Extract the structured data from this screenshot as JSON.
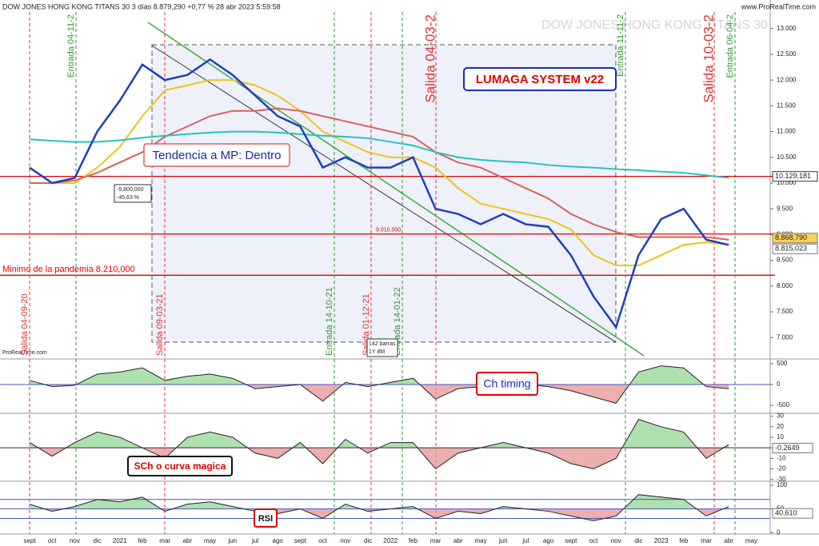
{
  "header": {
    "title": "DOW JONES HONG KONG TITANS 30 3 días 8.879,290 +0,77 % 28 abr 2023 5:59:58",
    "site": "www.ProRealTime.com",
    "watermark": "DOW JONES HONG KONG TITANS 30",
    "logo": "ProRealTime.com",
    "system_label": "LUMAGA SYSTEM v22",
    "trend_label": "Tendencia a MP: Dentro",
    "measure": [
      "-5,800,000",
      "-45,63 %"
    ],
    "bars": [
      "142 barras",
      "1Y 8M"
    ]
  },
  "chart_data": [
    {
      "type": "line",
      "categories": [
        "sept",
        "oct",
        "nov",
        "dic",
        "2021",
        "feb",
        "mar",
        "abr",
        "may",
        "jun",
        "jul",
        "ago",
        "sept",
        "oct",
        "nov",
        "dic",
        "2022",
        "feb",
        "mar",
        "abr",
        "may",
        "jun",
        "jul",
        "ago",
        "sept",
        "oct",
        "nov",
        "dic",
        "2023",
        "feb",
        "mar",
        "abr",
        "may"
      ],
      "series": [
        {
          "color": "#1f3fbf",
          "values": [
            10.3,
            10.0,
            10.1,
            11.0,
            11.6,
            12.3,
            12.0,
            12.1,
            12.4,
            12.1,
            11.7,
            11.3,
            11.1,
            10.3,
            10.5,
            10.3,
            10.3,
            10.5,
            9.5,
            9.4,
            9.2,
            9.4,
            9.2,
            9.15,
            8.6,
            7.8,
            7.2,
            8.6,
            9.3,
            9.5,
            8.9,
            8.8,
            null
          ]
        },
        {
          "color": "#f2c21b",
          "values": [
            10.0,
            10.0,
            10.0,
            10.3,
            10.7,
            11.3,
            11.8,
            11.9,
            12.0,
            12.0,
            11.9,
            11.7,
            11.4,
            11.0,
            10.8,
            10.6,
            10.5,
            10.5,
            10.3,
            9.9,
            9.6,
            9.5,
            9.4,
            9.3,
            9.1,
            8.6,
            8.4,
            8.4,
            8.6,
            8.8,
            8.85,
            8.8,
            null
          ]
        },
        {
          "color": "#d9625e",
          "values": [
            10.0,
            10.0,
            10.05,
            10.2,
            10.4,
            10.6,
            10.9,
            11.1,
            11.3,
            11.4,
            11.4,
            11.45,
            11.4,
            11.3,
            11.2,
            11.1,
            11.0,
            10.9,
            10.6,
            10.4,
            10.3,
            10.1,
            9.9,
            9.7,
            9.4,
            9.2,
            9.05,
            8.95,
            8.95,
            8.95,
            8.95,
            8.9,
            null
          ]
        },
        {
          "color": "#26c2c2",
          "values": [
            10.85,
            10.82,
            10.8,
            10.8,
            10.83,
            10.88,
            10.92,
            10.95,
            10.98,
            11.0,
            11.0,
            10.98,
            10.95,
            10.92,
            10.9,
            10.87,
            10.8,
            10.73,
            10.6,
            10.5,
            10.45,
            10.42,
            10.4,
            10.35,
            10.32,
            10.3,
            10.27,
            10.25,
            10.22,
            10.2,
            10.15,
            10.1,
            null
          ]
        }
      ],
      "ylim": [
        6.6,
        13.12
      ],
      "yticks": [
        {
          "value": 7,
          "label": "7.000"
        },
        {
          "value": 7.5,
          "label": "7.500"
        },
        {
          "value": 8,
          "label": "8.000"
        },
        {
          "value": 8.5,
          "label": "8.500"
        },
        {
          "value": 9,
          "label": "9.000"
        },
        {
          "value": 9.5,
          "label": "9.500"
        },
        {
          "value": 10,
          "label": "10.000"
        },
        {
          "value": 10.5,
          "label": "10.500"
        },
        {
          "value": 11,
          "label": "11.000"
        },
        {
          "value": 11.5,
          "label": "11.500"
        },
        {
          "value": 12,
          "label": "12.000"
        },
        {
          "value": 12.5,
          "label": "12.500"
        },
        {
          "value": 13,
          "label": "13.000"
        }
      ],
      "hlines": [
        {
          "value": 10.129181,
          "label": "10.129,181"
        },
        {
          "value": 9.01,
          "label": "9.010,000"
        },
        {
          "value": 8.21,
          "label": "Minimo de la pandemia 8.210,000"
        }
      ],
      "last_values": [
        {
          "value": 8.86879,
          "label": "8.868,790"
        },
        {
          "value": 8.815023,
          "label": "8.815,023"
        }
      ],
      "events": [
        {
          "label": "Salida 04-09-20",
          "color": "#e03030"
        },
        {
          "label": "Entrada 04-11-2",
          "color": "#2e9a2e"
        },
        {
          "label": "Salida 09-03-21",
          "color": "#e03030"
        },
        {
          "label": "Entrada 14-10-21",
          "color": "#2e9a2e"
        },
        {
          "label": "Salida 01-12-21",
          "color": "#e03030"
        },
        {
          "label": "Entrada 14-01-22",
          "color": "#2e9a2e"
        },
        {
          "label": "Salida 04-03-2",
          "color": "#e03030"
        },
        {
          "label": "Entrada 11-11-2",
          "color": "#2e9a2e"
        },
        {
          "label": "Salida 10-03-2",
          "color": "#e03030"
        },
        {
          "label": "Entrada 06-04-2",
          "color": "#2e9a2e"
        }
      ]
    },
    {
      "type": "area",
      "title": "Ch timing",
      "values": [
        100,
        -50,
        -20,
        250,
        300,
        400,
        100,
        200,
        250,
        150,
        -100,
        -50,
        0,
        -400,
        50,
        -50,
        50,
        150,
        -350,
        -100,
        -50,
        100,
        0,
        -50,
        -150,
        -300,
        -450,
        300,
        450,
        400,
        -50,
        -100,
        null
      ],
      "ylim": [
        -673,
        596
      ],
      "yticks": [
        500,
        0,
        -500
      ]
    },
    {
      "type": "area",
      "title": "SCh o curva magica",
      "values": [
        5,
        -8,
        5,
        15,
        10,
        0,
        -10,
        10,
        15,
        10,
        -5,
        -10,
        5,
        -15,
        8,
        -5,
        5,
        5,
        -20,
        -5,
        0,
        5,
        0,
        -5,
        -15,
        -20,
        -10,
        27,
        20,
        15,
        -10,
        3,
        null
      ],
      "ylim": [
        -31,
        32
      ],
      "yticks": [
        30,
        20,
        10,
        0,
        -10,
        -20,
        -30
      ],
      "last_value": {
        "value": -0.2649,
        "label": "-0,2649"
      }
    },
    {
      "type": "area",
      "title": "RSI",
      "values": [
        60,
        45,
        55,
        70,
        65,
        75,
        45,
        60,
        65,
        55,
        45,
        40,
        50,
        30,
        60,
        45,
        50,
        55,
        30,
        45,
        40,
        55,
        50,
        45,
        35,
        25,
        35,
        80,
        75,
        70,
        35,
        55,
        null
      ],
      "ylim": [
        -3,
        106.7
      ],
      "yticks": [
        100,
        50,
        0
      ],
      "levels": [
        70,
        30
      ],
      "baseline": 50,
      "last_value": {
        "value": 40.61,
        "label": "40,610"
      }
    }
  ]
}
